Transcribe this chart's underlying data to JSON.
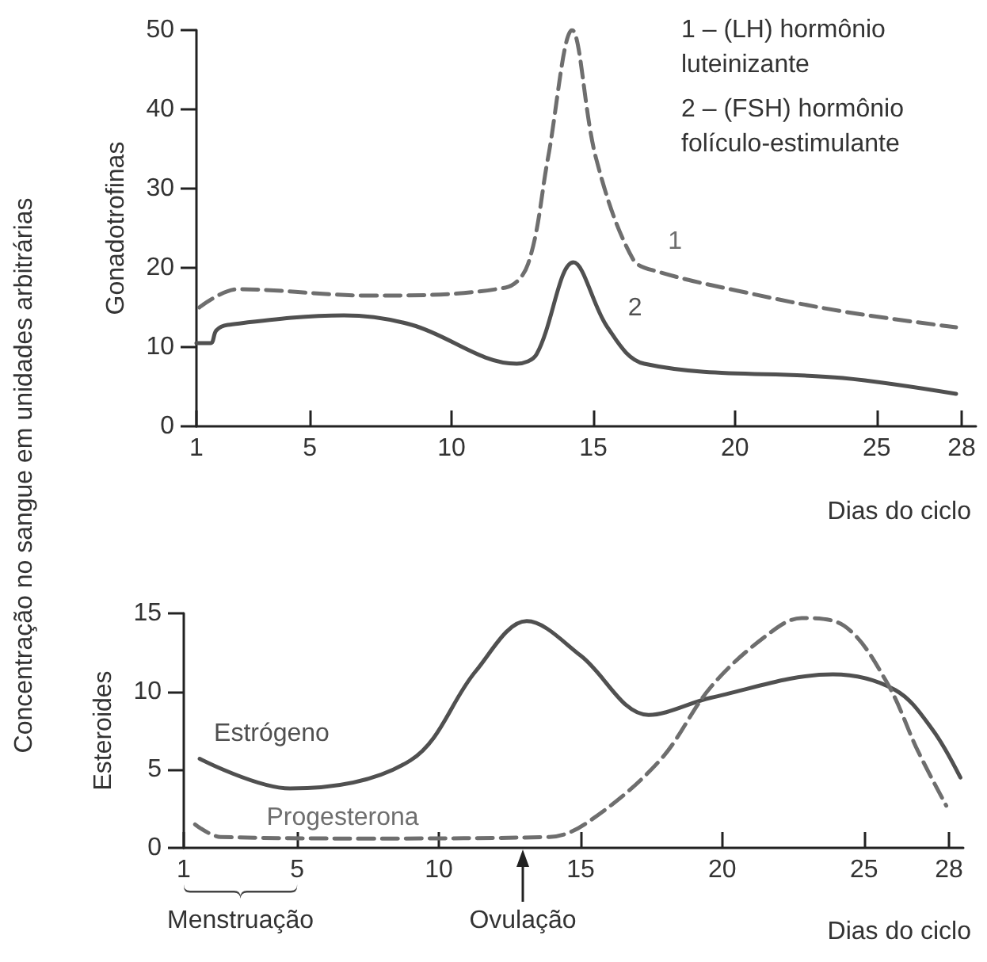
{
  "chart_data": [
    {
      "type": "line",
      "ylabel": "Gonadotrofinas",
      "xlabel": "Dias do ciclo",
      "xlim": [
        1,
        28.5
      ],
      "xticks": [
        1,
        5,
        10,
        15,
        20,
        25,
        28
      ],
      "ylim": [
        0,
        50
      ],
      "yticks": [
        0,
        10,
        20,
        30,
        40,
        50
      ],
      "grid": false,
      "legend": false,
      "annotations": [
        "1 – (LH) hormônio luteinizante",
        "2 – (FSH) hormônio folículo-estimulante",
        "Concentração no sangue em unidades arbitrárias"
      ],
      "series": [
        {
          "name": "1",
          "color": "#6e6e6e",
          "line_style": "dashed",
          "x": [
            1.1,
            2.45,
            7.1,
            11.9,
            12.7,
            13.4,
            14.25,
            15.1,
            16.4,
            17.3,
            20.1,
            23.8,
            27.8
          ],
          "values": [
            15,
            17.3,
            16.5,
            17.5,
            20.5,
            33.8,
            50,
            33.8,
            21.1,
            19.5,
            17.1,
            14.5,
            12.5
          ]
        },
        {
          "name": "2",
          "color": "#505050",
          "line_style": "solid",
          "x": [
            1,
            1.5,
            1.7,
            2.1,
            6.2,
            8.6,
            12.3,
            13,
            14.3,
            15.5,
            16.8,
            23.8,
            27.8
          ],
          "values": [
            10.5,
            10.5,
            12.1,
            12.8,
            14,
            12.8,
            7.9,
            9.1,
            20.7,
            12.5,
            7.9,
            6.1,
            4.1
          ]
        }
      ]
    },
    {
      "type": "line",
      "ylabel": "Esteroides",
      "xlabel": "Dias do ciclo",
      "xlim": [
        1,
        28.5
      ],
      "xticks": [
        1,
        5,
        10,
        15,
        20,
        25,
        28
      ],
      "ylim": [
        0,
        15
      ],
      "yticks": [
        0,
        5,
        10,
        15
      ],
      "grid": false,
      "legend": false,
      "annotations": [
        "Menstruação",
        "Ovulação"
      ],
      "series": [
        {
          "name": "Estrógeno",
          "color": "#505050",
          "line_style": "solid",
          "x": [
            1.56,
            4.75,
            9.0,
            11.3,
            13.1,
            15.0,
            17.4,
            19.6,
            23.9,
            26.1,
            27.4,
            28.4
          ],
          "values": [
            5.7,
            3.8,
            5.6,
            11.3,
            14.5,
            12.3,
            8.5,
            9.6,
            11.1,
            10.1,
            7.6,
            4.5
          ]
        },
        {
          "name": "Progesterona",
          "color": "#6e6e6e",
          "line_style": "dashed",
          "x": [
            1.4,
            2.3,
            7.5,
            13.9,
            15.3,
            17.8,
            19.6,
            21.5,
            22.8,
            24.3,
            25.8,
            26.9,
            27.9
          ],
          "values": [
            1.5,
            0.7,
            0.6,
            0.7,
            1.7,
            5.6,
            10.3,
            13.5,
            14.7,
            14.2,
            10.6,
            6.2,
            2.7
          ]
        }
      ]
    }
  ]
}
